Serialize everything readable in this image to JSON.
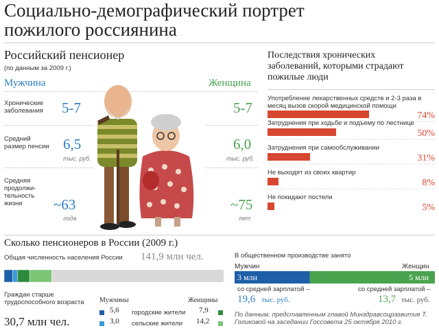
{
  "title_line1": "Социально-демографический портрет",
  "title_line2": "пожилого россиянина",
  "pensioner": {
    "heading": "Российский пенсионер",
    "subheading": "(по данным за 2009 г.)",
    "men_label": "Мужчина",
    "women_label": "Женщина",
    "rows": [
      {
        "label": "Хронические заболевания",
        "men": "5-7",
        "women": "5-7",
        "men_unit": "",
        "women_unit": ""
      },
      {
        "label": "Средний размер пенсии",
        "men": "6,5",
        "women": "6,0",
        "men_unit": "тыс. руб.",
        "women_unit": "тыс. руб."
      },
      {
        "label": "Средняя продолжи-тельность жизни",
        "men": "~63",
        "women": "~75",
        "men_unit": "года",
        "women_unit": "лет"
      }
    ]
  },
  "consequences": {
    "heading": "Последствия хронических заболеваний, которыми страдают пожилые люди",
    "colors": {
      "bar": "#d7462f"
    }
  },
  "how_many": {
    "heading": "Сколько пенсионеров в России (2009 г.)",
    "population_label": "Общая численность населения России",
    "population_value": "141,9 млн чел.",
    "elderly_label": "Граждан старше трудоспособного возраста",
    "elderly_value": "30,7 млн чел.",
    "men_header": "Мужчины",
    "women_header": "Женщины",
    "urban_label": "городские жители",
    "rural_label": "сельские жители",
    "men_urban": "5,6",
    "men_rural": "3,0",
    "women_urban": "7,9",
    "women_rural": "14,2",
    "colors": {
      "men_dark": "#1f5fa8",
      "men_light": "#3a9bd9",
      "women_dark": "#2e8b3e",
      "women_light": "#7cc576",
      "rest": "#d9d9d9"
    }
  },
  "employment": {
    "heading": "В общественном производстве занято",
    "men_label": "Мужчин",
    "women_label": "Женщин",
    "men_value": "3 млн",
    "women_value": "5 млн",
    "salary_prefix": "со средней зарплатой –",
    "men_salary": "19,6",
    "women_salary": "13,7",
    "salary_unit": "тыс. руб.",
    "source": "По данным, представленным главой Минздравсоцразвития Т. Голиковой на заседании Госсовета 25 октября 2010 г."
  },
  "chart_data": [
    {
      "type": "bar",
      "title": "Последствия хронических заболеваний, которыми страдают пожилые люди",
      "categories": [
        "Употребление лекарственных средств и 2-3 раза в месяц вызов скорой медицинской помощи",
        "Затруднения при ходьбе и подъему по лестнице",
        "Затруднения при самообслуживании",
        "Не выходят из своих квартир",
        "Не покидают постели"
      ],
      "values": [
        74,
        50,
        31,
        8,
        5
      ],
      "value_labels": [
        "74%",
        "50%",
        "31%",
        "8%",
        "5%"
      ],
      "xlim": [
        0,
        100
      ]
    },
    {
      "type": "bar",
      "title": "Сколько пенсионеров в России (2009 г.)",
      "categories": [
        "Мужчины городские жители",
        "Мужчины сельские жители",
        "Женщины городские жители",
        "Женщины сельские жители"
      ],
      "values": [
        5.6,
        3.0,
        7.9,
        14.2
      ],
      "total": 141.9
    },
    {
      "type": "bar",
      "title": "В общественном производстве занято",
      "categories": [
        "Мужчин",
        "Женщин"
      ],
      "values": [
        3,
        5
      ]
    }
  ]
}
